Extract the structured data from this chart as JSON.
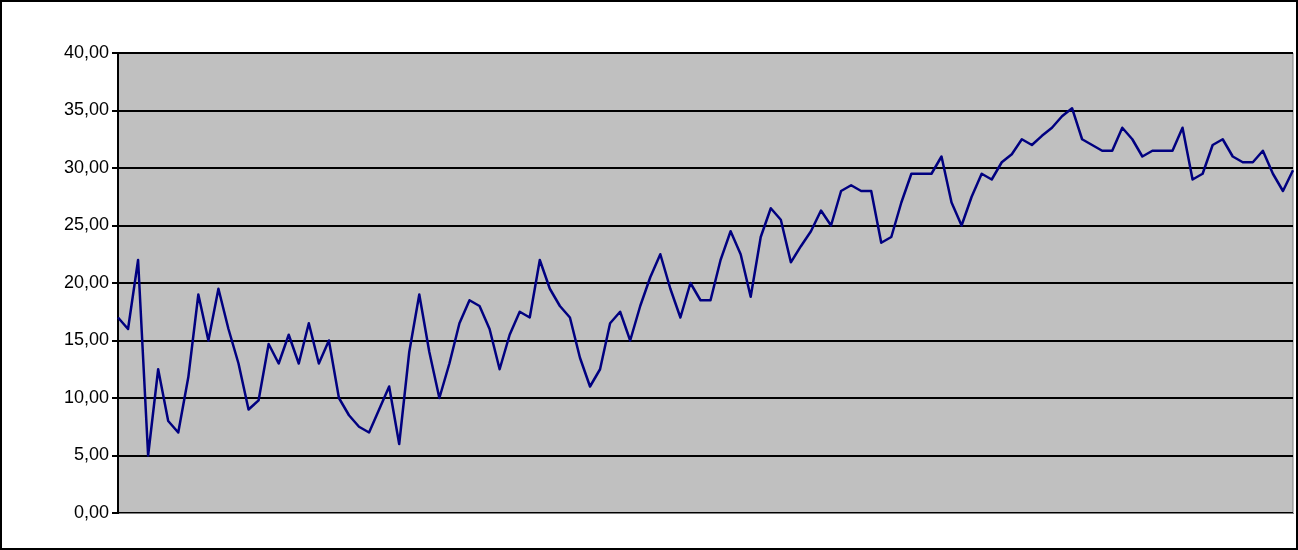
{
  "chart_data": {
    "type": "line",
    "categories": [
      null,
      null,
      null,
      null,
      null,
      null,
      null,
      null,
      null,
      null,
      null,
      null,
      null,
      null,
      null,
      null,
      null,
      null,
      null,
      null,
      null,
      null,
      null,
      null,
      null,
      null,
      null,
      null,
      null,
      null,
      null,
      null,
      null,
      null,
      null,
      null,
      null,
      null,
      null,
      null,
      null,
      null,
      null,
      null,
      null,
      null,
      null,
      null,
      null,
      null,
      null,
      null,
      null,
      null,
      null,
      null,
      null,
      null,
      null,
      null,
      null,
      null,
      null,
      null,
      null,
      null,
      null,
      null,
      null,
      null,
      null,
      null,
      null,
      null,
      null,
      null,
      null,
      null,
      null,
      null,
      null,
      null,
      null,
      null,
      null,
      null,
      null,
      null,
      null,
      null,
      null,
      null,
      null,
      null,
      null,
      null,
      null,
      null,
      null,
      null,
      null,
      null,
      null,
      null,
      null,
      null,
      null,
      null,
      null,
      null,
      null,
      null,
      null,
      null,
      null,
      null,
      null,
      null
    ],
    "series": [
      {
        "color": "#000080",
        "values": [
          17,
          16,
          22,
          5,
          12.5,
          8,
          7,
          11.8,
          19,
          15,
          19.5,
          16,
          13,
          9,
          9.8,
          14.7,
          13,
          15.5,
          13,
          16.5,
          13,
          15,
          10,
          8.5,
          7.5,
          7,
          9,
          11,
          6,
          14,
          19,
          14,
          10,
          13,
          16.5,
          18.5,
          18,
          16,
          12.5,
          15.5,
          17.5,
          17,
          22,
          19.5,
          18,
          17,
          13.5,
          11,
          12.5,
          16.5,
          17.5,
          15,
          18,
          20.5,
          22.5,
          19.5,
          17,
          20,
          18.5,
          18.5,
          22,
          24.5,
          22.5,
          18.8,
          24,
          26.5,
          25.5,
          21.8,
          23.2,
          24.5,
          26.3,
          25,
          28,
          28.5,
          28,
          28,
          23.5,
          24,
          27,
          29.5,
          29.5,
          29.5,
          31,
          27,
          25,
          27.5,
          29.5,
          29,
          30.5,
          31.2,
          32.5,
          32,
          32.8,
          33.5,
          34.5,
          35.2,
          32.5,
          32,
          31.5,
          31.5,
          33.5,
          32.5,
          31,
          31.5,
          31.5,
          31.5,
          33.5,
          29,
          29.5,
          32,
          32.5,
          31,
          30.5,
          30.5,
          31.5,
          29.5,
          28,
          29.8
        ]
      }
    ],
    "ylim": [
      0,
      40
    ],
    "yticks": [
      {
        "value": 0,
        "label": "0,00"
      },
      {
        "value": 5,
        "label": "5,00"
      },
      {
        "value": 10,
        "label": "10,00"
      },
      {
        "value": 15,
        "label": "15,00"
      },
      {
        "value": 20,
        "label": "20,00"
      },
      {
        "value": 25,
        "label": "25,00"
      },
      {
        "value": 30,
        "label": "30,00"
      },
      {
        "value": 35,
        "label": "35,00"
      },
      {
        "value": 40,
        "label": "40,00"
      }
    ],
    "grid": "y",
    "legend": false,
    "marker": "none",
    "line_style": "solid",
    "tick_labels": "y"
  }
}
